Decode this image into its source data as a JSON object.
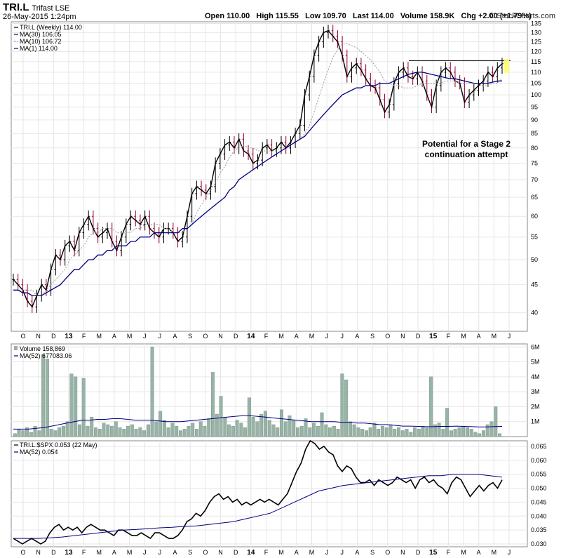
{
  "header": {
    "symbol": "TRI.L",
    "name": "Trifast LSE",
    "date": "26-May-2015 1:24pm",
    "open": "Open 110.00",
    "high": "High 115.55",
    "low": "Low 109.70",
    "last": "Last 114.00",
    "volume": "Volume 158.9K",
    "chg": "Chg +2.00 (+1.79%)",
    "brand": "© StockCharts.com"
  },
  "colors": {
    "price": "#000000",
    "down_bar": "#990033",
    "ma30": "#000080",
    "ma10": "#999999",
    "volume_bar": "#99b3a6",
    "grid": "#e6e6e6"
  },
  "x_axis": {
    "labels": [
      "O",
      "N",
      "D",
      "13",
      "F",
      "M",
      "A",
      "M",
      "J",
      "J",
      "A",
      "S",
      "O",
      "N",
      "D",
      "14",
      "F",
      "M",
      "A",
      "M",
      "J",
      "J",
      "A",
      "S",
      "O",
      "N",
      "D",
      "15",
      "F",
      "M",
      "A",
      "M",
      "J"
    ],
    "bold": [
      "13",
      "14",
      "15"
    ]
  },
  "chart_data": [
    {
      "type": "line",
      "panel": "price",
      "scale": "log",
      "legend": [
        "TRI.L (Weekly) 114.00",
        "MA(30) 106.05",
        "MA(10) 106.72",
        "MA(1) 114.00"
      ],
      "y_ticks": [
        40,
        45,
        50,
        55,
        60,
        65,
        70,
        75,
        80,
        85,
        90,
        95,
        100,
        105,
        110,
        115,
        120,
        125,
        130,
        135
      ],
      "ylim": [
        37,
        136
      ],
      "annotation": [
        "Potential for a Stage 2",
        "continuation attempt"
      ],
      "resistance_level": 115.5,
      "series": [
        {
          "name": "MA(1)",
          "values": [
            46,
            45,
            44,
            42,
            41,
            43,
            45,
            44,
            48,
            51,
            50,
            53,
            54,
            52,
            56,
            58,
            60,
            57,
            55,
            56,
            57,
            54,
            52,
            55,
            58,
            60,
            59,
            58,
            60,
            57,
            56,
            55,
            57,
            57,
            56,
            54,
            55,
            60,
            66,
            68,
            67,
            66,
            68,
            75,
            78,
            81,
            82,
            80,
            83,
            79,
            78,
            75,
            76,
            80,
            81,
            79,
            80,
            82,
            80,
            82,
            85,
            88,
            100,
            108,
            118,
            125,
            130,
            131,
            128,
            125,
            118,
            108,
            112,
            114,
            111,
            107,
            104,
            103,
            98,
            93,
            96,
            105,
            110,
            112,
            108,
            107,
            110,
            106,
            100,
            95,
            104,
            110,
            112,
            110,
            106,
            105,
            97,
            100,
            102,
            104,
            106,
            110,
            108,
            112,
            114
          ]
        },
        {
          "name": "MA(10)",
          "values": [
            44,
            44,
            44,
            44,
            44,
            43,
            43,
            44,
            45,
            46,
            47,
            48,
            50,
            51,
            52,
            53,
            55,
            56,
            56,
            57,
            57,
            57,
            56,
            56,
            56,
            56,
            57,
            57,
            58,
            58,
            58,
            58,
            57,
            57,
            56,
            56,
            56,
            57,
            58,
            61,
            63,
            65,
            67,
            69,
            72,
            74,
            77,
            79,
            80,
            81,
            80,
            80,
            79,
            79,
            79,
            79,
            79,
            80,
            80,
            81,
            82,
            83,
            85,
            88,
            93,
            99,
            105,
            111,
            117,
            121,
            124,
            124,
            123,
            122,
            120,
            118,
            116,
            113,
            110,
            106,
            105,
            104,
            104,
            103,
            103,
            103,
            104,
            105,
            105,
            105,
            105,
            105,
            106,
            106,
            106,
            105,
            105,
            105,
            105,
            104,
            104,
            104,
            105,
            105,
            107
          ]
        },
        {
          "name": "MA(30)",
          "values": [
            44,
            44,
            43.5,
            43.5,
            43,
            43,
            43,
            43.5,
            44,
            44.5,
            45,
            46,
            47,
            48,
            48,
            49,
            50,
            50,
            51,
            51,
            52,
            52,
            53,
            53,
            53,
            54,
            54,
            55,
            55,
            55,
            56,
            56,
            56,
            56,
            56,
            56,
            57,
            57,
            58,
            59,
            60,
            61,
            62,
            63,
            64,
            65,
            67,
            68,
            70,
            71,
            72,
            73,
            74,
            75,
            76,
            77,
            78,
            79,
            80,
            81,
            82,
            83,
            84,
            86,
            88,
            90,
            92,
            94,
            96,
            98,
            100,
            101,
            102,
            103,
            103,
            104,
            104,
            104,
            105,
            105,
            105,
            106,
            107,
            108,
            109,
            109.5,
            110,
            110,
            109.5,
            109,
            108.5,
            108,
            107.5,
            107,
            107,
            106.5,
            106,
            105.5,
            105,
            105,
            105,
            105,
            105.5,
            106,
            106.05
          ]
        }
      ]
    },
    {
      "type": "bar",
      "panel": "volume",
      "legend": [
        "Volume 158,869",
        "MA(52) 677083.06"
      ],
      "y_ticks": [
        "1M",
        "2M",
        "3M",
        "4M",
        "5M",
        "6M"
      ],
      "ylim": [
        0,
        6.2
      ],
      "series": [
        {
          "name": "Volume",
          "values": [
            0.2,
            0.5,
            0.4,
            0.6,
            0.3,
            0.7,
            0.4,
            5.5,
            5.2,
            0.5,
            0.4,
            0.6,
            0.7,
            1.0,
            4.2,
            4.0,
            0.8,
            3.9,
            0.7,
            1.3,
            0.6,
            0.5,
            0.9,
            0.8,
            0.7,
            1.0,
            0.6,
            0.5,
            0.7,
            0.8,
            0.5,
            0.6,
            0.4,
            0.8,
            6.0,
            1.0,
            1.7,
            1.1,
            0.6,
            0.9,
            0.7,
            0.4,
            0.5,
            0.7,
            0.9,
            0.5,
            1.0,
            0.7,
            1.2,
            4.3,
            1.5,
            2.7,
            1.3,
            0.8,
            0.7,
            1.1,
            0.9,
            0.6,
            2.6,
            1.3,
            1.0,
            1.5,
            1.7,
            1.1,
            0.8,
            0.6,
            1.8,
            1.0,
            1.4,
            1.1,
            0.6,
            0.7,
            1.2,
            0.6,
            0.9,
            0.7,
            1.6,
            0.8,
            0.6,
            0.7,
            0.5,
            4.2,
            3.8,
            1.0,
            0.8,
            0.6,
            0.5,
            0.4,
            0.6,
            0.9,
            0.5,
            0.7,
            0.6,
            0.8,
            0.5,
            0.6,
            0.4,
            0.5,
            0.3,
            0.6,
            0.5,
            0.7,
            0.6,
            4.0,
            0.8,
            0.9,
            0.5,
            1.9,
            0.4,
            0.5,
            0.6,
            0.7,
            0.6,
            0.5,
            0.3,
            0.2,
            0.4,
            0.8,
            1.0,
            2.0,
            0.2
          ]
        },
        {
          "name": "MA(52)",
          "values": [
            0.5,
            0.5,
            0.5,
            0.55,
            0.6,
            0.7,
            0.8,
            0.9,
            1.0,
            1.1,
            1.1,
            1.15,
            1.15,
            1.2,
            1.2,
            1.15,
            1.1,
            1.1,
            1.1,
            1.05,
            1.0,
            1.0,
            1.0,
            1.05,
            1.1,
            1.15,
            1.2,
            1.25,
            1.3,
            1.35,
            1.4,
            1.4,
            1.35,
            1.3,
            1.25,
            1.2,
            1.15,
            1.1,
            1.05,
            1.0,
            1.0,
            1.0,
            1.0,
            0.95,
            0.95,
            0.9,
            0.9,
            0.85,
            0.8,
            0.8,
            0.75,
            0.7,
            0.7,
            0.68,
            0.66,
            0.66,
            0.68,
            0.68,
            0.7,
            0.68,
            0.66,
            0.65,
            0.65,
            0.67,
            0.68
          ]
        }
      ]
    },
    {
      "type": "line",
      "panel": "relative",
      "legend": [
        "TRI.L:$SPX 0.053 (22 May)",
        "MA(52) 0.054"
      ],
      "y_ticks": [
        "0.030",
        "0.035",
        "0.040",
        "0.045",
        "0.050",
        "0.055",
        "0.060",
        "0.065"
      ],
      "ylim": [
        0.029,
        0.067
      ],
      "series": [
        {
          "name": "TRI.L:$SPX",
          "values": [
            0.032,
            0.031,
            0.03,
            0.031,
            0.032,
            0.031,
            0.03,
            0.031,
            0.034,
            0.036,
            0.037,
            0.035,
            0.036,
            0.035,
            0.036,
            0.034,
            0.036,
            0.037,
            0.036,
            0.035,
            0.035,
            0.034,
            0.033,
            0.035,
            0.035,
            0.034,
            0.033,
            0.033,
            0.034,
            0.033,
            0.032,
            0.034,
            0.034,
            0.033,
            0.032,
            0.032,
            0.033,
            0.035,
            0.038,
            0.039,
            0.041,
            0.04,
            0.042,
            0.045,
            0.047,
            0.048,
            0.046,
            0.047,
            0.045,
            0.046,
            0.044,
            0.045,
            0.044,
            0.045,
            0.046,
            0.045,
            0.046,
            0.045,
            0.044,
            0.046,
            0.048,
            0.052,
            0.056,
            0.059,
            0.064,
            0.067,
            0.066,
            0.064,
            0.065,
            0.063,
            0.062,
            0.058,
            0.056,
            0.058,
            0.057,
            0.054,
            0.052,
            0.052,
            0.053,
            0.051,
            0.053,
            0.052,
            0.051,
            0.052,
            0.054,
            0.053,
            0.052,
            0.053,
            0.05,
            0.053,
            0.054,
            0.052,
            0.053,
            0.051,
            0.05,
            0.048,
            0.052,
            0.054,
            0.053,
            0.05,
            0.047,
            0.049,
            0.051,
            0.049,
            0.051,
            0.052,
            0.05,
            0.053
          ]
        },
        {
          "name": "MA(52)",
          "values": [
            0.032,
            0.032,
            0.032,
            0.0322,
            0.0325,
            0.033,
            0.0335,
            0.034,
            0.0345,
            0.035,
            0.0352,
            0.0355,
            0.0358,
            0.036,
            0.0363,
            0.0365,
            0.037,
            0.0375,
            0.038,
            0.039,
            0.04,
            0.041,
            0.043,
            0.045,
            0.047,
            0.049,
            0.05,
            0.051,
            0.0515,
            0.052,
            0.0525,
            0.053,
            0.0535,
            0.054,
            0.0545,
            0.0545,
            0.055,
            0.055,
            0.055,
            0.0545,
            0.054
          ]
        }
      ]
    }
  ]
}
